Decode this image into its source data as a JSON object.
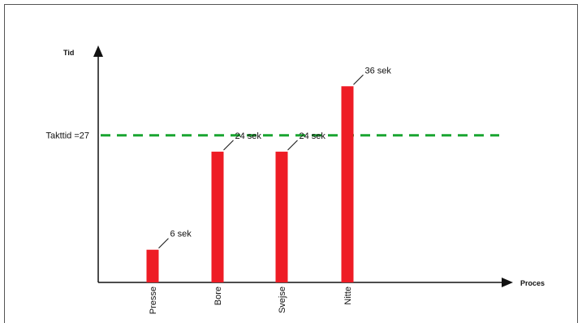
{
  "chart_data": {
    "type": "bar",
    "categories": [
      "Presse",
      "Bore",
      "Svejse",
      "Nitte"
    ],
    "values": [
      6,
      24,
      24,
      36
    ],
    "data_labels": [
      "6 sek",
      "24 sek",
      "24 sek",
      "36 sek"
    ],
    "xlabel": "Proces",
    "ylabel": "Tid",
    "ylim": [
      0,
      42
    ],
    "reference_line": {
      "label": "Takttid =27",
      "value": 27,
      "color": "#1aa531",
      "style": "dashed"
    },
    "bar_color": "#ee1c25",
    "grid": false
  }
}
